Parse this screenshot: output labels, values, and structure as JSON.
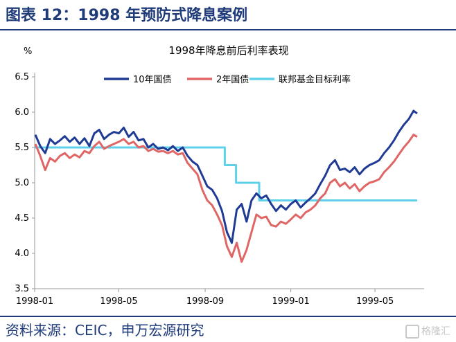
{
  "figure_title": "图表 12：1998 年预防式降息案例",
  "source": "资料来源：CEIC，申万宏源研究",
  "watermark": "格隆汇",
  "chart_data": {
    "type": "line",
    "title": "1998年降息前后利率表现",
    "ylabel": "%",
    "xlabel": "",
    "ylim": [
      3.5,
      6.5
    ],
    "yticks": [
      "3.5",
      "4.0",
      "4.5",
      "5.0",
      "5.5",
      "6.0",
      "6.5"
    ],
    "xticks": [
      "1998-01",
      "1998-05",
      "1998-09",
      "1999-01",
      "1999-05"
    ],
    "xlim": [
      "1998-01-01",
      "1999-07-10"
    ],
    "grid": false,
    "legend": "top",
    "series": [
      {
        "name": "10年国债",
        "color": "#1f3b94",
        "points": [
          [
            "1998-01-02",
            5.68
          ],
          [
            "1998-01-09",
            5.52
          ],
          [
            "1998-01-16",
            5.42
          ],
          [
            "1998-01-23",
            5.62
          ],
          [
            "1998-01-30",
            5.55
          ],
          [
            "1998-02-06",
            5.6
          ],
          [
            "1998-02-13",
            5.66
          ],
          [
            "1998-02-20",
            5.58
          ],
          [
            "1998-02-27",
            5.64
          ],
          [
            "1998-03-06",
            5.55
          ],
          [
            "1998-03-13",
            5.63
          ],
          [
            "1998-03-20",
            5.52
          ],
          [
            "1998-03-27",
            5.7
          ],
          [
            "1998-04-03",
            5.75
          ],
          [
            "1998-04-10",
            5.62
          ],
          [
            "1998-04-17",
            5.68
          ],
          [
            "1998-04-24",
            5.72
          ],
          [
            "1998-05-01",
            5.7
          ],
          [
            "1998-05-08",
            5.78
          ],
          [
            "1998-05-15",
            5.65
          ],
          [
            "1998-05-22",
            5.72
          ],
          [
            "1998-05-29",
            5.6
          ],
          [
            "1998-06-05",
            5.62
          ],
          [
            "1998-06-12",
            5.5
          ],
          [
            "1998-06-19",
            5.55
          ],
          [
            "1998-06-26",
            5.48
          ],
          [
            "1998-07-03",
            5.5
          ],
          [
            "1998-07-10",
            5.46
          ],
          [
            "1998-07-17",
            5.52
          ],
          [
            "1998-07-24",
            5.45
          ],
          [
            "1998-07-31",
            5.5
          ],
          [
            "1998-08-07",
            5.38
          ],
          [
            "1998-08-14",
            5.3
          ],
          [
            "1998-08-21",
            5.25
          ],
          [
            "1998-08-28",
            5.1
          ],
          [
            "1998-09-04",
            4.95
          ],
          [
            "1998-09-11",
            4.9
          ],
          [
            "1998-09-18",
            4.78
          ],
          [
            "1998-09-25",
            4.6
          ],
          [
            "1998-10-02",
            4.3
          ],
          [
            "1998-10-09",
            4.15
          ],
          [
            "1998-10-16",
            4.62
          ],
          [
            "1998-10-23",
            4.7
          ],
          [
            "1998-10-30",
            4.45
          ],
          [
            "1998-11-06",
            4.75
          ],
          [
            "1998-11-13",
            4.85
          ],
          [
            "1998-11-20",
            4.78
          ],
          [
            "1998-11-27",
            4.82
          ],
          [
            "1998-12-04",
            4.7
          ],
          [
            "1998-12-11",
            4.6
          ],
          [
            "1998-12-18",
            4.68
          ],
          [
            "1998-12-25",
            4.62
          ],
          [
            "1999-01-01",
            4.7
          ],
          [
            "1999-01-08",
            4.75
          ],
          [
            "1999-01-15",
            4.65
          ],
          [
            "1999-01-22",
            4.72
          ],
          [
            "1999-01-29",
            4.78
          ],
          [
            "1999-02-05",
            4.85
          ],
          [
            "1999-02-12",
            4.98
          ],
          [
            "1999-02-19",
            5.1
          ],
          [
            "1999-02-26",
            5.25
          ],
          [
            "1999-03-05",
            5.32
          ],
          [
            "1999-03-12",
            5.18
          ],
          [
            "1999-03-19",
            5.2
          ],
          [
            "1999-03-26",
            5.15
          ],
          [
            "1999-04-02",
            5.22
          ],
          [
            "1999-04-09",
            5.12
          ],
          [
            "1999-04-16",
            5.2
          ],
          [
            "1999-04-23",
            5.25
          ],
          [
            "1999-04-30",
            5.28
          ],
          [
            "1999-05-07",
            5.32
          ],
          [
            "1999-05-14",
            5.42
          ],
          [
            "1999-05-21",
            5.5
          ],
          [
            "1999-05-28",
            5.6
          ],
          [
            "1999-06-04",
            5.72
          ],
          [
            "1999-06-11",
            5.82
          ],
          [
            "1999-06-18",
            5.9
          ],
          [
            "1999-06-25",
            6.02
          ],
          [
            "1999-06-30",
            5.98
          ]
        ]
      },
      {
        "name": "2年国债",
        "color": "#e06666",
        "points": [
          [
            "1998-01-02",
            5.55
          ],
          [
            "1998-01-09",
            5.38
          ],
          [
            "1998-01-16",
            5.18
          ],
          [
            "1998-01-23",
            5.35
          ],
          [
            "1998-01-30",
            5.3
          ],
          [
            "1998-02-06",
            5.38
          ],
          [
            "1998-02-13",
            5.42
          ],
          [
            "1998-02-20",
            5.35
          ],
          [
            "1998-02-27",
            5.4
          ],
          [
            "1998-03-06",
            5.36
          ],
          [
            "1998-03-13",
            5.45
          ],
          [
            "1998-03-20",
            5.42
          ],
          [
            "1998-03-27",
            5.52
          ],
          [
            "1998-04-03",
            5.58
          ],
          [
            "1998-04-10",
            5.48
          ],
          [
            "1998-04-17",
            5.52
          ],
          [
            "1998-04-24",
            5.55
          ],
          [
            "1998-05-01",
            5.58
          ],
          [
            "1998-05-08",
            5.62
          ],
          [
            "1998-05-15",
            5.55
          ],
          [
            "1998-05-22",
            5.58
          ],
          [
            "1998-05-29",
            5.5
          ],
          [
            "1998-06-05",
            5.52
          ],
          [
            "1998-06-12",
            5.45
          ],
          [
            "1998-06-19",
            5.48
          ],
          [
            "1998-06-26",
            5.44
          ],
          [
            "1998-07-03",
            5.45
          ],
          [
            "1998-07-10",
            5.42
          ],
          [
            "1998-07-17",
            5.45
          ],
          [
            "1998-07-24",
            5.4
          ],
          [
            "1998-07-31",
            5.42
          ],
          [
            "1998-08-07",
            5.28
          ],
          [
            "1998-08-14",
            5.2
          ],
          [
            "1998-08-21",
            5.12
          ],
          [
            "1998-08-28",
            4.9
          ],
          [
            "1998-09-04",
            4.75
          ],
          [
            "1998-09-11",
            4.68
          ],
          [
            "1998-09-18",
            4.55
          ],
          [
            "1998-09-25",
            4.4
          ],
          [
            "1998-10-02",
            4.1
          ],
          [
            "1998-10-09",
            3.95
          ],
          [
            "1998-10-16",
            4.15
          ],
          [
            "1998-10-23",
            3.88
          ],
          [
            "1998-10-30",
            4.05
          ],
          [
            "1998-11-06",
            4.3
          ],
          [
            "1998-11-13",
            4.55
          ],
          [
            "1998-11-20",
            4.5
          ],
          [
            "1998-11-27",
            4.52
          ],
          [
            "1998-12-04",
            4.4
          ],
          [
            "1998-12-11",
            4.38
          ],
          [
            "1998-12-18",
            4.45
          ],
          [
            "1998-12-25",
            4.42
          ],
          [
            "1999-01-01",
            4.48
          ],
          [
            "1999-01-08",
            4.55
          ],
          [
            "1999-01-15",
            4.5
          ],
          [
            "1999-01-22",
            4.58
          ],
          [
            "1999-01-29",
            4.62
          ],
          [
            "1999-02-05",
            4.68
          ],
          [
            "1999-02-12",
            4.78
          ],
          [
            "1999-02-19",
            4.85
          ],
          [
            "1999-02-26",
            5.0
          ],
          [
            "1999-03-05",
            5.05
          ],
          [
            "1999-03-12",
            4.95
          ],
          [
            "1999-03-19",
            5.0
          ],
          [
            "1999-03-26",
            4.92
          ],
          [
            "1999-04-02",
            4.98
          ],
          [
            "1999-04-09",
            4.88
          ],
          [
            "1999-04-16",
            4.95
          ],
          [
            "1999-04-23",
            5.0
          ],
          [
            "1999-04-30",
            5.02
          ],
          [
            "1999-05-07",
            5.05
          ],
          [
            "1999-05-14",
            5.15
          ],
          [
            "1999-05-21",
            5.22
          ],
          [
            "1999-05-28",
            5.3
          ],
          [
            "1999-06-04",
            5.4
          ],
          [
            "1999-06-11",
            5.5
          ],
          [
            "1999-06-18",
            5.58
          ],
          [
            "1999-06-25",
            5.68
          ],
          [
            "1999-06-30",
            5.65
          ]
        ]
      },
      {
        "name": "联邦基金目标利率",
        "color": "#5fd0ea",
        "step": true,
        "points": [
          [
            "1998-01-01",
            5.5
          ],
          [
            "1998-09-29",
            5.5
          ],
          [
            "1998-09-29",
            5.25
          ],
          [
            "1998-10-15",
            5.25
          ],
          [
            "1998-10-15",
            5.0
          ],
          [
            "1998-11-17",
            5.0
          ],
          [
            "1998-11-17",
            4.75
          ],
          [
            "1999-06-30",
            4.75
          ]
        ]
      }
    ]
  }
}
